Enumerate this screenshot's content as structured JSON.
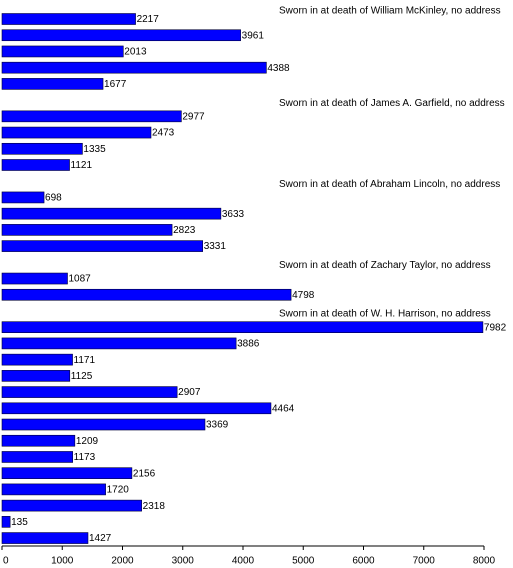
{
  "chart_data": {
    "type": "hbar",
    "categories": [
      null,
      null,
      null,
      null,
      null,
      null,
      null,
      null,
      null,
      null,
      null,
      null,
      null,
      null,
      null,
      null,
      null,
      null,
      null,
      null,
      null,
      null,
      null,
      null,
      null,
      null,
      null,
      null,
      null,
      null,
      null,
      null,
      null,
      null
    ],
    "values": [
      null,
      2217,
      3961,
      2013,
      4388,
      1677,
      null,
      2977,
      2473,
      1335,
      1121,
      null,
      698,
      3633,
      2823,
      3331,
      null,
      1087,
      4798,
      null,
      7982,
      3886,
      1171,
      1125,
      2907,
      4464,
      3369,
      1209,
      1173,
      2156,
      1720,
      2318,
      135,
      1427
    ],
    "annotations": [
      "Sworn in at death of William McKinley, no address",
      "Sworn in at death of James A. Garfield, no address",
      "Sworn in at death of Abraham Lincoln, no address",
      "Sworn in at death of Zachary Taylor, no address",
      "Sworn in at death of W. H. Harrison, no address"
    ],
    "color": "#0000ff",
    "xlim": [
      0,
      8000
    ],
    "xticks": [
      0,
      1000,
      2000,
      3000,
      4000,
      5000,
      6000,
      7000,
      8000
    ]
  }
}
